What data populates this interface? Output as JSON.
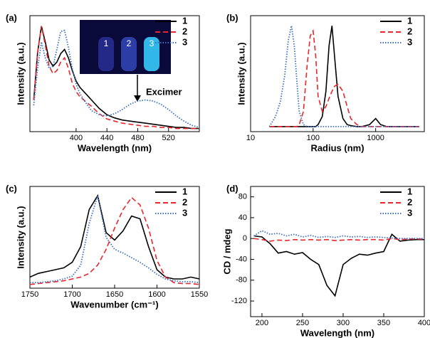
{
  "chart_data": [
    {
      "type": "line",
      "panel_label": "(a)",
      "xlabel": "Wavelength (nm)",
      "ylabel": "Intensity (a.u.)",
      "annotation": "Excimer",
      "inset_labels": [
        "1",
        "2",
        "3"
      ],
      "x": [
        345,
        350,
        355,
        360,
        365,
        370,
        375,
        380,
        385,
        390,
        395,
        400,
        405,
        410,
        415,
        420,
        430,
        440,
        450,
        460,
        470,
        480,
        490,
        500,
        510,
        520,
        530,
        540,
        550,
        560
      ],
      "xlim": [
        340,
        560
      ],
      "xticks": [
        400,
        440,
        480,
        520
      ],
      "ylim": [
        0,
        1.1
      ],
      "series": [
        {
          "name": "1",
          "color": "#000000",
          "dash": "solid",
          "values": [
            0.3,
            0.75,
            1.0,
            0.85,
            0.68,
            0.62,
            0.66,
            0.74,
            0.78,
            0.7,
            0.58,
            0.48,
            0.42,
            0.38,
            0.34,
            0.3,
            0.22,
            0.16,
            0.13,
            0.11,
            0.1,
            0.09,
            0.08,
            0.07,
            0.06,
            0.05,
            0.04,
            0.04,
            0.03,
            0.03
          ]
        },
        {
          "name": "2",
          "color": "#e8262b",
          "dash": "dashed",
          "values": [
            0.3,
            0.75,
            1.0,
            0.82,
            0.62,
            0.55,
            0.58,
            0.66,
            0.7,
            0.6,
            0.46,
            0.38,
            0.33,
            0.3,
            0.27,
            0.24,
            0.17,
            0.12,
            0.1,
            0.08,
            0.07,
            0.06,
            0.05,
            0.05,
            0.04,
            0.04,
            0.03,
            0.03,
            0.03,
            0.03
          ]
        },
        {
          "name": "3",
          "color": "#3b6fc4",
          "dash": "dotted",
          "values": [
            0.25,
            0.6,
            0.85,
            0.7,
            0.6,
            0.62,
            0.78,
            0.95,
            0.96,
            0.8,
            0.6,
            0.45,
            0.36,
            0.3,
            0.25,
            0.2,
            0.16,
            0.15,
            0.17,
            0.21,
            0.26,
            0.29,
            0.3,
            0.29,
            0.26,
            0.21,
            0.15,
            0.1,
            0.06,
            0.04
          ]
        }
      ]
    },
    {
      "type": "line",
      "panel_label": "(b)",
      "xlabel": "Radius (nm)",
      "ylabel": "Intensity (a.u.)",
      "xscale": "log",
      "x": [
        20,
        25,
        30,
        35,
        40,
        45,
        50,
        55,
        60,
        70,
        80,
        90,
        100,
        110,
        120,
        140,
        160,
        180,
        200,
        220,
        250,
        300,
        350,
        400,
        500,
        600,
        800,
        1000,
        1200,
        1500,
        2000,
        3000,
        5000
      ],
      "xlim": [
        10,
        6000
      ],
      "xticks": [
        10,
        100,
        1000
      ],
      "ylim": [
        -0.05,
        1.1
      ],
      "series": [
        {
          "name": "1",
          "color": "#000000",
          "dash": "solid",
          "values": [
            0,
            0,
            0,
            0,
            0,
            0,
            0,
            0,
            0,
            0,
            0,
            0,
            0,
            0,
            0.02,
            0.1,
            0.35,
            0.8,
            1.0,
            0.7,
            0.3,
            0.08,
            0.02,
            0.01,
            0,
            0,
            0.02,
            0.08,
            0.02,
            0,
            0,
            0,
            0
          ]
        },
        {
          "name": "2",
          "color": "#e8262b",
          "dash": "dashed",
          "values": [
            0,
            0,
            0,
            0,
            0,
            0,
            0,
            0,
            0.02,
            0.15,
            0.6,
            0.9,
            0.95,
            0.7,
            0.3,
            0.15,
            0.2,
            0.28,
            0.35,
            0.4,
            0.42,
            0.35,
            0.2,
            0.08,
            0.02,
            0,
            0,
            0,
            0,
            0,
            0,
            0,
            0
          ]
        },
        {
          "name": "3",
          "color": "#3b6fc4",
          "dash": "dotted",
          "values": [
            0,
            0.1,
            0.25,
            0.5,
            0.85,
            1.0,
            0.8,
            0.45,
            0.15,
            0.02,
            0,
            0,
            0,
            0,
            0,
            0,
            0,
            0,
            0,
            0,
            0,
            0,
            0,
            0,
            0,
            0,
            0,
            0,
            0,
            0,
            0,
            0,
            0
          ]
        }
      ]
    },
    {
      "type": "line",
      "panel_label": "(c)",
      "xlabel": "Wavenumber (cm⁻¹)",
      "ylabel": "Intensity (a.u.)",
      "x": [
        1750,
        1740,
        1730,
        1720,
        1710,
        1700,
        1690,
        1680,
        1670,
        1660,
        1650,
        1640,
        1630,
        1620,
        1610,
        1600,
        1590,
        1580,
        1570,
        1560,
        1550
      ],
      "xlim": [
        1750,
        1550
      ],
      "xticks": [
        1750,
        1700,
        1650,
        1600,
        1550
      ],
      "ylim": [
        0,
        1.1
      ],
      "series": [
        {
          "name": "1",
          "color": "#000000",
          "dash": "solid",
          "values": [
            0.12,
            0.16,
            0.18,
            0.2,
            0.22,
            0.28,
            0.45,
            0.85,
            1.0,
            0.6,
            0.52,
            0.62,
            0.78,
            0.75,
            0.45,
            0.2,
            0.12,
            0.1,
            0.1,
            0.12,
            0.1
          ]
        },
        {
          "name": "2",
          "color": "#e8262b",
          "dash": "dashed",
          "values": [
            0.04,
            0.05,
            0.06,
            0.07,
            0.08,
            0.1,
            0.12,
            0.16,
            0.25,
            0.42,
            0.65,
            0.85,
            0.98,
            0.9,
            0.65,
            0.3,
            0.12,
            0.06,
            0.05,
            0.05,
            0.04
          ]
        },
        {
          "name": "3",
          "color": "#3b6fc4",
          "dash": "dotted",
          "values": [
            0.06,
            0.06,
            0.07,
            0.08,
            0.1,
            0.13,
            0.25,
            0.7,
            1.0,
            0.55,
            0.42,
            0.38,
            0.33,
            0.28,
            0.22,
            0.15,
            0.1,
            0.08,
            0.07,
            0.07,
            0.06
          ]
        }
      ]
    },
    {
      "type": "line",
      "panel_label": "(d)",
      "xlabel": "Wavelength (nm)",
      "ylabel": "CD / mdeg",
      "x": [
        190,
        200,
        210,
        220,
        230,
        240,
        250,
        260,
        270,
        280,
        290,
        300,
        310,
        320,
        330,
        340,
        350,
        360,
        370,
        380,
        390,
        400
      ],
      "xlim": [
        186,
        400
      ],
      "xticks": [
        200,
        250,
        300,
        350,
        400
      ],
      "ylim": [
        -150,
        100
      ],
      "yticks": [
        -120,
        -80,
        -40,
        0,
        40,
        80
      ],
      "series": [
        {
          "name": "1",
          "color": "#000000",
          "dash": "solid",
          "values": [
            5,
            3,
            -10,
            -28,
            -25,
            -30,
            -27,
            -40,
            -50,
            -90,
            -110,
            -50,
            -38,
            -30,
            -32,
            -28,
            -25,
            8,
            -5,
            -3,
            -2,
            -2
          ]
        },
        {
          "name": "2",
          "color": "#e8262b",
          "dash": "dashed",
          "values": [
            0,
            -2,
            -5,
            -3,
            -4,
            -2,
            -3,
            -2,
            -3,
            -2,
            -4,
            -3,
            -2,
            -3,
            -2,
            -2,
            -3,
            0,
            -2,
            -1,
            -1,
            -1
          ]
        },
        {
          "name": "3",
          "color": "#3b6fc4",
          "dash": "dotted",
          "values": [
            5,
            15,
            8,
            10,
            5,
            8,
            3,
            6,
            2,
            4,
            2,
            5,
            3,
            4,
            2,
            3,
            2,
            1,
            0,
            0,
            0,
            0
          ]
        }
      ]
    }
  ]
}
